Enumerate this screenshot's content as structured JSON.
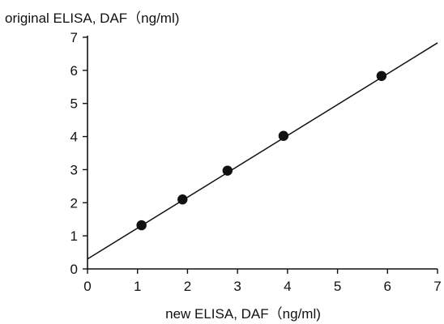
{
  "chart_data": {
    "type": "scatter",
    "title": "",
    "xlabel": "new ELISA, DAF（ng/ml)",
    "ylabel": "original ELISA, DAF（ng/ml)",
    "xlim": [
      0,
      7
    ],
    "ylim": [
      0,
      7
    ],
    "xticks": [
      0,
      1,
      2,
      3,
      4,
      5,
      6,
      7
    ],
    "yticks": [
      0,
      1,
      2,
      3,
      4,
      5,
      6,
      7
    ],
    "grid": false,
    "series": [
      {
        "points": [
          {
            "x": 1.08,
            "y": 1.32
          },
          {
            "x": 1.9,
            "y": 2.1
          },
          {
            "x": 2.8,
            "y": 2.97
          },
          {
            "x": 3.92,
            "y": 4.02
          },
          {
            "x": 5.88,
            "y": 5.83
          }
        ]
      }
    ],
    "fit_line": {
      "x": [
        0,
        7
      ],
      "y": [
        0.3,
        6.83
      ]
    }
  }
}
